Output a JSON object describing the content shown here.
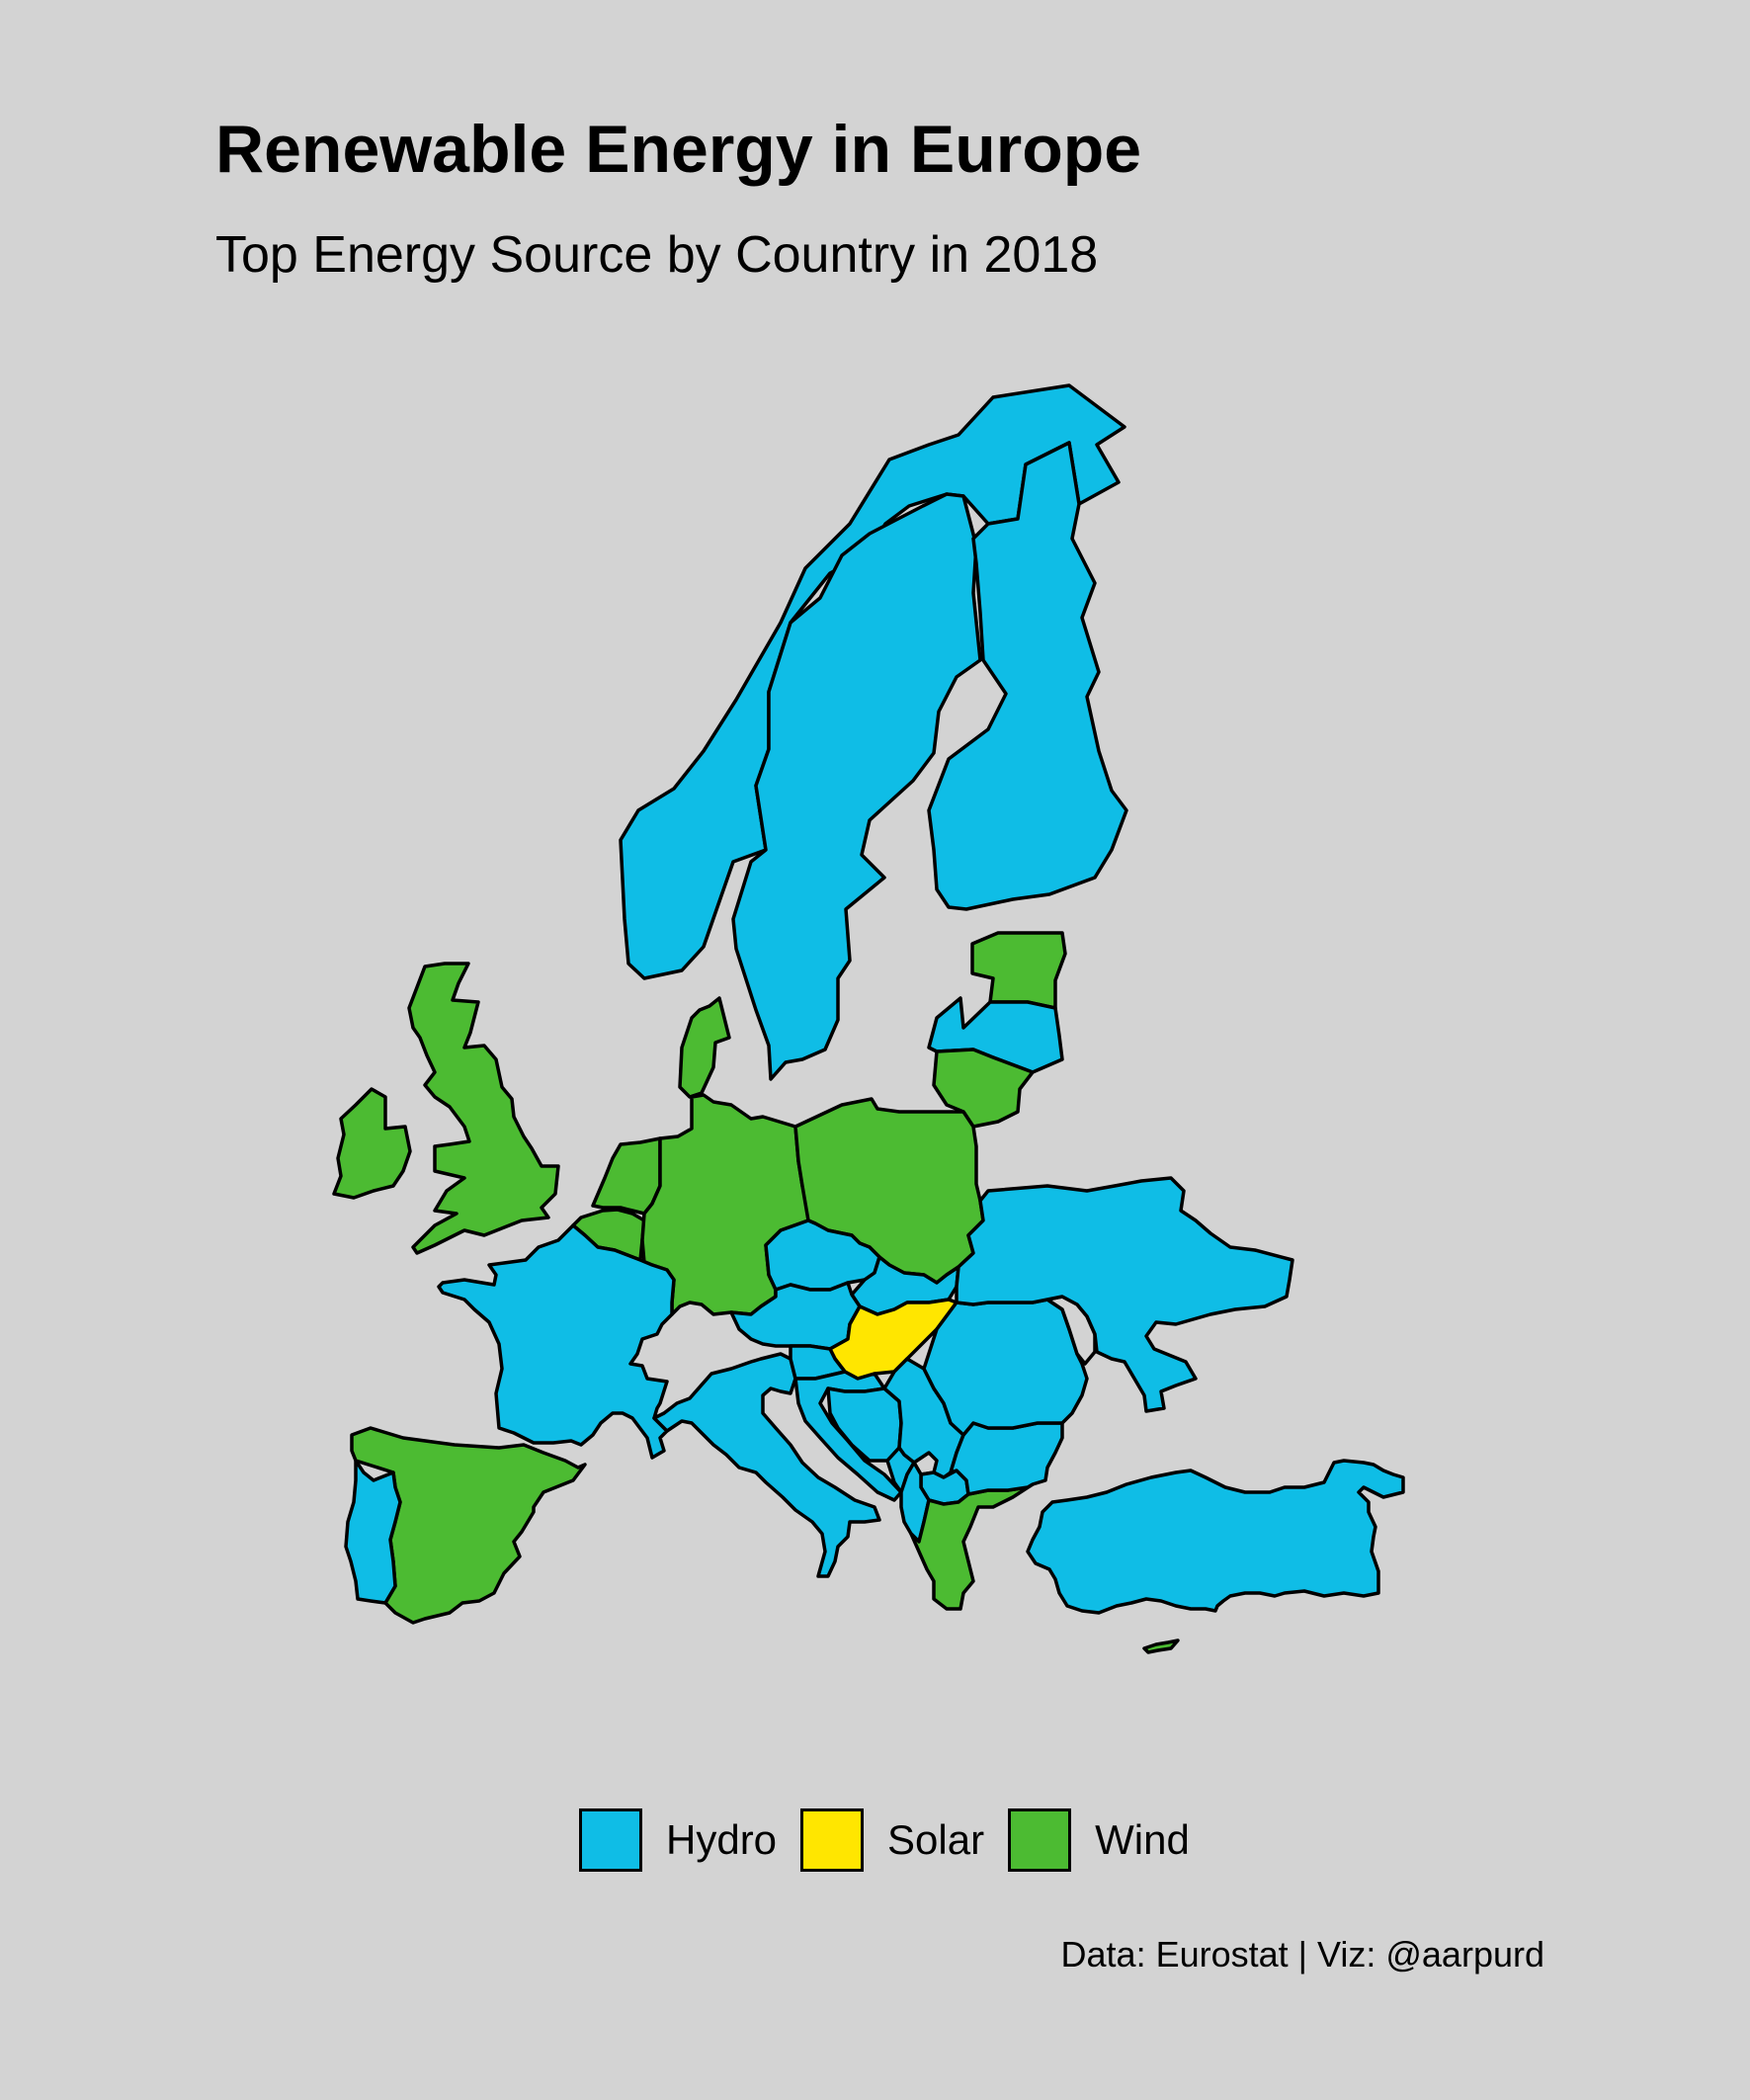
{
  "title": "Renewable Energy in Europe",
  "subtitle": "Top Energy Source by Country in 2018",
  "caption": "Data: Eurostat | Viz: @aarpurd",
  "legend": [
    {
      "label": "Hydro",
      "color": "#0fbde6"
    },
    {
      "label": "Solar",
      "color": "#ffe600"
    },
    {
      "label": "Wind",
      "color": "#4cbb32"
    }
  ],
  "colors": {
    "background": "#d3d3d3",
    "border": "#000000"
  },
  "countries": [
    {
      "name": "Norway",
      "source": "Hydro"
    },
    {
      "name": "Sweden",
      "source": "Hydro"
    },
    {
      "name": "Finland",
      "source": "Hydro"
    },
    {
      "name": "Estonia",
      "source": "Wind"
    },
    {
      "name": "Latvia",
      "source": "Hydro"
    },
    {
      "name": "Lithuania",
      "source": "Wind"
    },
    {
      "name": "Ireland",
      "source": "Wind"
    },
    {
      "name": "United Kingdom",
      "source": "Wind"
    },
    {
      "name": "Denmark",
      "source": "Wind"
    },
    {
      "name": "Netherlands",
      "source": "Wind"
    },
    {
      "name": "Belgium",
      "source": "Wind"
    },
    {
      "name": "Germany",
      "source": "Wind"
    },
    {
      "name": "Poland",
      "source": "Wind"
    },
    {
      "name": "France",
      "source": "Hydro"
    },
    {
      "name": "Spain",
      "source": "Wind"
    },
    {
      "name": "Portugal",
      "source": "Hydro"
    },
    {
      "name": "Italy",
      "source": "Hydro"
    },
    {
      "name": "Austria",
      "source": "Hydro"
    },
    {
      "name": "Czechia",
      "source": "Hydro"
    },
    {
      "name": "Slovakia",
      "source": "Hydro"
    },
    {
      "name": "Hungary",
      "source": "Solar"
    },
    {
      "name": "Slovenia",
      "source": "Hydro"
    },
    {
      "name": "Croatia",
      "source": "Hydro"
    },
    {
      "name": "Bosnia and Herzegovina",
      "source": "Hydro"
    },
    {
      "name": "Serbia",
      "source": "Hydro"
    },
    {
      "name": "Montenegro",
      "source": "Hydro"
    },
    {
      "name": "North Macedonia",
      "source": "Hydro"
    },
    {
      "name": "Albania",
      "source": "Hydro"
    },
    {
      "name": "Greece",
      "source": "Wind"
    },
    {
      "name": "Bulgaria",
      "source": "Hydro"
    },
    {
      "name": "Romania",
      "source": "Hydro"
    },
    {
      "name": "Ukraine",
      "source": "Hydro"
    },
    {
      "name": "Turkey",
      "source": "Hydro"
    },
    {
      "name": "Cyprus",
      "source": "Wind"
    }
  ]
}
